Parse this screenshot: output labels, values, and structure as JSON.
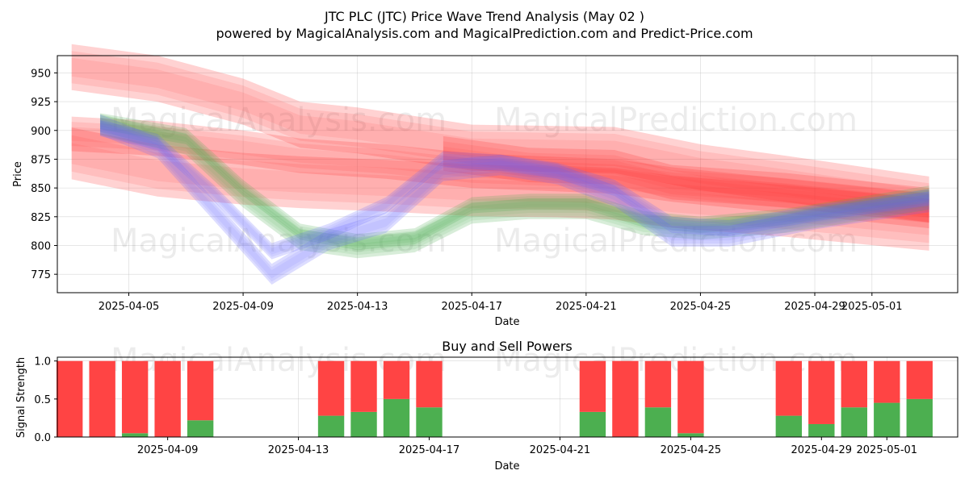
{
  "title": "JTC PLC (JTC) Price Wave Trend Analysis (May 02 )",
  "subtitle": "powered by MagicalAnalysis.com and MagicalPrediction.com and Predict-Price.com",
  "watermarks": [
    "MagicalAnalysis.com",
    "MagicalPrediction.com",
    "MagicalAnalysis.com",
    "MagicalPrediction.com",
    "MagicalAnalysis.com",
    "MagicalPrediction.com"
  ],
  "colors": {
    "red": "#ff3333",
    "green": "#4caf50",
    "blue": "#6666ff",
    "sell": "#ff4444",
    "buy": "#4caf50"
  },
  "chart_data": [
    {
      "type": "area",
      "xlabel": "Date",
      "ylabel": "Price",
      "xlim": [
        "2025-04-02T12:00",
        "2025-05-04"
      ],
      "ylim": [
        759,
        965
      ],
      "x_ticks": [
        "2025-04-05",
        "2025-04-09",
        "2025-04-13",
        "2025-04-17",
        "2025-04-21",
        "2025-04-25",
        "2025-04-29",
        "2025-05-01"
      ],
      "y_ticks": [
        775,
        800,
        825,
        850,
        875,
        900,
        925,
        950
      ],
      "grid": true,
      "series": [
        {
          "color": "red",
          "band": true,
          "x": [
            "2025-04-03",
            "2025-04-06",
            "2025-04-09",
            "2025-04-11",
            "2025-04-13",
            "2025-04-17",
            "2025-04-22",
            "2025-04-25",
            "2025-04-28",
            "2025-05-03"
          ],
          "y": [
            955,
            945,
            925,
            905,
            900,
            885,
            883,
            868,
            858,
            840
          ],
          "width": 40
        },
        {
          "color": "red",
          "band": true,
          "x": [
            "2025-04-03",
            "2025-04-06",
            "2025-04-09",
            "2025-04-11",
            "2025-04-14",
            "2025-04-17",
            "2025-04-20",
            "2025-04-22",
            "2025-04-24",
            "2025-04-28",
            "2025-05-03"
          ],
          "y": [
            897,
            893,
            885,
            878,
            873,
            865,
            862,
            860,
            853,
            843,
            830
          ],
          "width": 30
        },
        {
          "color": "red",
          "band": true,
          "x": [
            "2025-04-03",
            "2025-04-06",
            "2025-04-09",
            "2025-04-11",
            "2025-04-14",
            "2025-04-17",
            "2025-04-20",
            "2025-04-22",
            "2025-04-24",
            "2025-04-28",
            "2025-05-03"
          ],
          "y": [
            880,
            865,
            858,
            855,
            852,
            848,
            847,
            845,
            838,
            830,
            818
          ],
          "width": 45
        },
        {
          "color": "red",
          "band": true,
          "x": [
            "2025-04-16",
            "2025-04-19",
            "2025-04-22",
            "2025-04-24",
            "2025-04-28",
            "2025-05-03"
          ],
          "y": [
            880,
            870,
            868,
            855,
            848,
            835
          ],
          "width": 30
        },
        {
          "color": "green",
          "band": true,
          "x": [
            "2025-04-04",
            "2025-04-07",
            "2025-04-09",
            "2025-04-11",
            "2025-04-13",
            "2025-04-15",
            "2025-04-17",
            "2025-04-19",
            "2025-04-21",
            "2025-04-23",
            "2025-04-25",
            "2025-04-28",
            "2025-05-03"
          ],
          "y": [
            908,
            895,
            850,
            812,
            803,
            808,
            835,
            838,
            838,
            823,
            818,
            825,
            845
          ],
          "width": 14
        },
        {
          "color": "green",
          "band": true,
          "x": [
            "2025-04-04",
            "2025-04-07",
            "2025-04-09",
            "2025-04-11",
            "2025-04-13",
            "2025-04-15",
            "2025-04-17",
            "2025-04-19",
            "2025-04-21",
            "2025-04-23",
            "2025-04-25",
            "2025-04-28",
            "2025-05-03"
          ],
          "y": [
            905,
            888,
            842,
            805,
            798,
            803,
            828,
            832,
            832,
            818,
            814,
            820,
            840
          ],
          "width": 18
        },
        {
          "color": "blue",
          "band": true,
          "x": [
            "2025-04-04",
            "2025-04-06",
            "2025-04-08",
            "2025-04-10",
            "2025-04-12",
            "2025-04-14",
            "2025-04-16",
            "2025-04-18",
            "2025-04-20",
            "2025-04-22",
            "2025-04-24",
            "2025-04-26",
            "2025-04-29",
            "2025-05-03"
          ],
          "y": [
            905,
            885,
            830,
            775,
            805,
            820,
            865,
            870,
            862,
            843,
            808,
            808,
            823,
            838
          ],
          "width": 18
        },
        {
          "color": "blue",
          "band": true,
          "x": [
            "2025-04-04",
            "2025-04-06",
            "2025-04-08",
            "2025-04-10",
            "2025-04-12",
            "2025-04-14",
            "2025-04-16",
            "2025-04-18",
            "2025-04-20",
            "2025-04-22",
            "2025-04-24",
            "2025-04-26",
            "2025-04-29",
            "2025-05-03"
          ],
          "y": [
            902,
            890,
            845,
            795,
            812,
            835,
            875,
            872,
            865,
            850,
            818,
            815,
            828,
            842
          ],
          "width": 14
        }
      ]
    },
    {
      "type": "bar",
      "title": "Buy and Sell Powers",
      "xlabel": "Date",
      "ylabel": "Signal Strength",
      "xlim": [
        "2025-04-05T15:00",
        "2025-05-03T04:00"
      ],
      "ylim": [
        0,
        1.05
      ],
      "x_ticks": [
        "2025-04-09",
        "2025-04-13",
        "2025-04-17",
        "2025-04-21",
        "2025-04-25",
        "2025-04-29",
        "2025-05-01"
      ],
      "y_ticks": [
        "0.0",
        "0.5",
        "1.0"
      ],
      "x": [
        "2025-04-06",
        "2025-04-07",
        "2025-04-08",
        "2025-04-09",
        "2025-04-10",
        "2025-04-14",
        "2025-04-15",
        "2025-04-16",
        "2025-04-17",
        "2025-04-22",
        "2025-04-23",
        "2025-04-24",
        "2025-04-25",
        "2025-04-28",
        "2025-04-29",
        "2025-04-30",
        "2025-05-01",
        "2025-05-02"
      ],
      "series": [
        {
          "name": "buy",
          "values": [
            0,
            0,
            0.05,
            0,
            0.22,
            0.28,
            0.33,
            0.5,
            0.39,
            0.33,
            0,
            0.39,
            0.05,
            0.28,
            0.17,
            0.39,
            0.45,
            0.5
          ]
        },
        {
          "name": "sell",
          "values": [
            1,
            1,
            0.95,
            1,
            0.78,
            0.72,
            0.67,
            0.5,
            0.61,
            0.67,
            1,
            0.61,
            0.95,
            0.72,
            0.83,
            0.61,
            0.55,
            0.5
          ]
        }
      ]
    }
  ]
}
